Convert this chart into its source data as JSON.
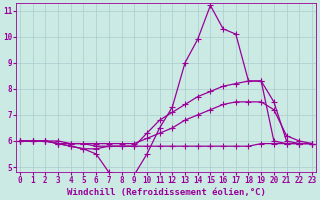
{
  "background_color": "#cceae4",
  "grid_color": "#aacccc",
  "line_color": "#990099",
  "marker": "+",
  "markersize": 4,
  "linewidth": 0.9,
  "x_min": 0,
  "x_max": 23,
  "y_min": 5,
  "y_max": 11,
  "xlabel": "Windchill (Refroidissement éolien,°C)",
  "xlabel_fontsize": 6.5,
  "tick_fontsize": 5.5,
  "series": [
    {
      "x": [
        0,
        1,
        2,
        3,
        4,
        5,
        6,
        7,
        8,
        9,
        10,
        11,
        12,
        13,
        14,
        15,
        16,
        17,
        18,
        19,
        20,
        21,
        22,
        23
      ],
      "y": [
        6.0,
        6.0,
        6.0,
        5.9,
        5.8,
        5.7,
        5.5,
        4.8,
        4.6,
        4.7,
        5.5,
        6.5,
        7.3,
        9.0,
        9.9,
        11.2,
        10.3,
        10.1,
        8.3,
        8.3,
        6.0,
        5.9,
        5.9,
        5.9
      ]
    },
    {
      "x": [
        0,
        1,
        2,
        3,
        4,
        5,
        6,
        7,
        8,
        9,
        10,
        11,
        12,
        13,
        14,
        15,
        16,
        17,
        18,
        19,
        20,
        21,
        22,
        23
      ],
      "y": [
        6.0,
        6.0,
        6.0,
        5.9,
        5.8,
        5.7,
        5.7,
        5.8,
        5.8,
        5.8,
        6.3,
        6.8,
        7.1,
        7.4,
        7.7,
        7.9,
        8.1,
        8.2,
        8.3,
        8.3,
        7.5,
        6.0,
        5.9,
        5.9
      ]
    },
    {
      "x": [
        0,
        1,
        2,
        3,
        4,
        5,
        6,
        7,
        8,
        9,
        10,
        11,
        12,
        13,
        14,
        15,
        16,
        17,
        18,
        19,
        20,
        21,
        22,
        23
      ],
      "y": [
        6.0,
        6.0,
        6.0,
        5.9,
        5.9,
        5.9,
        5.9,
        5.9,
        5.9,
        5.9,
        6.1,
        6.3,
        6.5,
        6.8,
        7.0,
        7.2,
        7.4,
        7.5,
        7.5,
        7.5,
        7.2,
        6.2,
        6.0,
        5.9
      ]
    },
    {
      "x": [
        0,
        1,
        2,
        3,
        4,
        5,
        6,
        7,
        8,
        9,
        10,
        11,
        12,
        13,
        14,
        15,
        16,
        17,
        18,
        19,
        20,
        21,
        22,
        23
      ],
      "y": [
        6.0,
        6.0,
        6.0,
        6.0,
        5.9,
        5.9,
        5.8,
        5.8,
        5.8,
        5.8,
        5.8,
        5.8,
        5.8,
        5.8,
        5.8,
        5.8,
        5.8,
        5.8,
        5.8,
        5.9,
        5.9,
        5.9,
        5.9,
        5.9
      ]
    }
  ]
}
